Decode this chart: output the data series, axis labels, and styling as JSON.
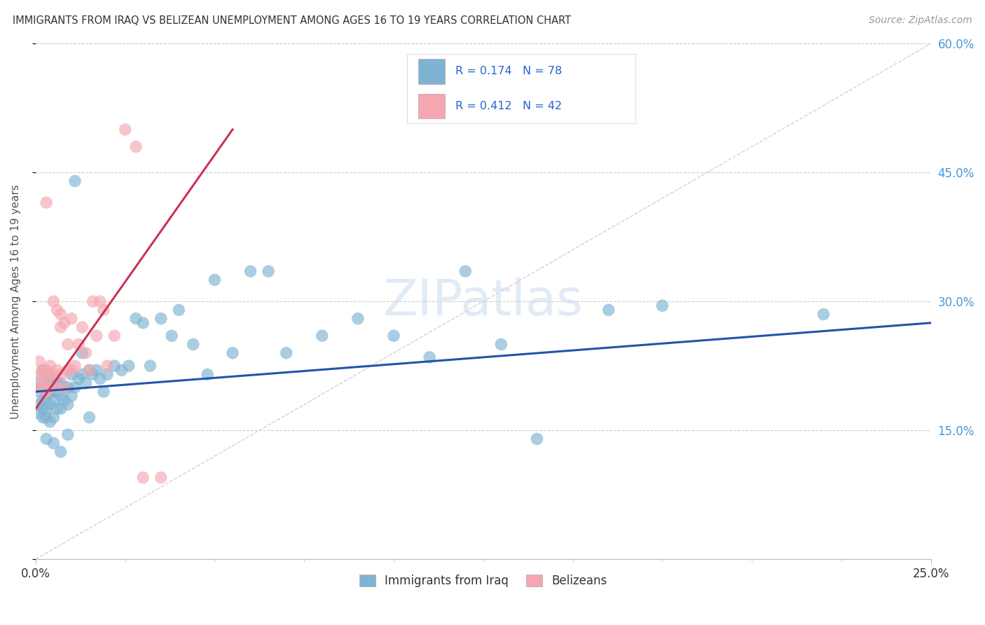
{
  "title": "IMMIGRANTS FROM IRAQ VS BELIZEAN UNEMPLOYMENT AMONG AGES 16 TO 19 YEARS CORRELATION CHART",
  "source": "Source: ZipAtlas.com",
  "ylabel": "Unemployment Among Ages 16 to 19 years",
  "xlim": [
    0.0,
    0.25
  ],
  "ylim": [
    0.0,
    0.6
  ],
  "ytick_positions": [
    0.0,
    0.15,
    0.3,
    0.45,
    0.6
  ],
  "ytick_labels": [
    "",
    "15.0%",
    "30.0%",
    "45.0%",
    "60.0%"
  ],
  "xtick_positions": [
    0.0,
    0.25
  ],
  "xtick_labels": [
    "0.0%",
    "25.0%"
  ],
  "blue_color": "#7FB3D3",
  "pink_color": "#F4A7B0",
  "blue_line_color": "#2255AA",
  "pink_line_color": "#CC3355",
  "ref_line_color": "#DDBBCC",
  "grid_color": "#CCCCCC",
  "blue_line_x": [
    0.0,
    0.25
  ],
  "blue_line_y": [
    0.195,
    0.275
  ],
  "pink_line_x": [
    0.0,
    0.055
  ],
  "pink_line_y": [
    0.175,
    0.5
  ],
  "ref_line_x": [
    0.0,
    0.25
  ],
  "ref_line_y": [
    0.0,
    0.6
  ],
  "blue_scatter_x": [
    0.001,
    0.001,
    0.001,
    0.001,
    0.002,
    0.002,
    0.002,
    0.002,
    0.002,
    0.003,
    0.003,
    0.003,
    0.003,
    0.003,
    0.004,
    0.004,
    0.004,
    0.004,
    0.005,
    0.005,
    0.005,
    0.005,
    0.006,
    0.006,
    0.006,
    0.007,
    0.007,
    0.007,
    0.008,
    0.008,
    0.009,
    0.009,
    0.01,
    0.01,
    0.011,
    0.012,
    0.013,
    0.014,
    0.015,
    0.016,
    0.017,
    0.018,
    0.019,
    0.02,
    0.022,
    0.024,
    0.026,
    0.028,
    0.03,
    0.032,
    0.035,
    0.038,
    0.04,
    0.044,
    0.048,
    0.05,
    0.055,
    0.06,
    0.065,
    0.07,
    0.08,
    0.09,
    0.1,
    0.11,
    0.12,
    0.13,
    0.14,
    0.16,
    0.175,
    0.22,
    0.003,
    0.005,
    0.007,
    0.009,
    0.011,
    0.013,
    0.015
  ],
  "blue_scatter_y": [
    0.205,
    0.195,
    0.18,
    0.17,
    0.22,
    0.2,
    0.185,
    0.175,
    0.165,
    0.215,
    0.2,
    0.19,
    0.175,
    0.165,
    0.21,
    0.195,
    0.18,
    0.16,
    0.21,
    0.195,
    0.185,
    0.165,
    0.205,
    0.195,
    0.175,
    0.205,
    0.19,
    0.175,
    0.2,
    0.185,
    0.2,
    0.18,
    0.215,
    0.19,
    0.2,
    0.21,
    0.215,
    0.205,
    0.22,
    0.215,
    0.22,
    0.21,
    0.195,
    0.215,
    0.225,
    0.22,
    0.225,
    0.28,
    0.275,
    0.225,
    0.28,
    0.26,
    0.29,
    0.25,
    0.215,
    0.325,
    0.24,
    0.335,
    0.335,
    0.24,
    0.26,
    0.28,
    0.26,
    0.235,
    0.335,
    0.25,
    0.14,
    0.29,
    0.295,
    0.285,
    0.14,
    0.135,
    0.125,
    0.145,
    0.44,
    0.24,
    0.165
  ],
  "pink_scatter_x": [
    0.001,
    0.001,
    0.001,
    0.002,
    0.002,
    0.002,
    0.003,
    0.003,
    0.003,
    0.003,
    0.004,
    0.004,
    0.004,
    0.005,
    0.005,
    0.006,
    0.006,
    0.006,
    0.007,
    0.007,
    0.007,
    0.008,
    0.008,
    0.009,
    0.009,
    0.01,
    0.01,
    0.011,
    0.012,
    0.013,
    0.014,
    0.015,
    0.016,
    0.017,
    0.018,
    0.019,
    0.02,
    0.022,
    0.025,
    0.028,
    0.03,
    0.035
  ],
  "pink_scatter_y": [
    0.2,
    0.215,
    0.23,
    0.2,
    0.215,
    0.22,
    0.195,
    0.415,
    0.205,
    0.22,
    0.2,
    0.215,
    0.225,
    0.3,
    0.215,
    0.29,
    0.22,
    0.2,
    0.285,
    0.27,
    0.215,
    0.275,
    0.2,
    0.25,
    0.22,
    0.28,
    0.22,
    0.225,
    0.25,
    0.27,
    0.24,
    0.22,
    0.3,
    0.26,
    0.3,
    0.29,
    0.225,
    0.26,
    0.5,
    0.48,
    0.095,
    0.095
  ]
}
